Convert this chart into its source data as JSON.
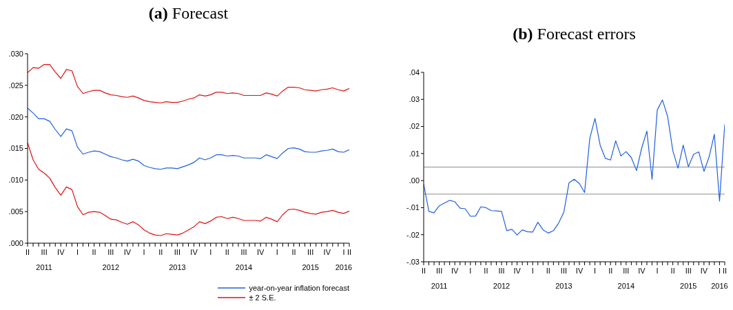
{
  "chart_data": [
    {
      "type": "line",
      "title": "(a) Forecast",
      "x": [
        "2011-04",
        "2011-05",
        "2011-06",
        "2011-07",
        "2011-08",
        "2011-09",
        "2011-10",
        "2011-11",
        "2011-12",
        "2012-01",
        "2012-02",
        "2012-03",
        "2012-04",
        "2012-05",
        "2012-06",
        "2012-07",
        "2012-08",
        "2012-09",
        "2012-10",
        "2012-11",
        "2012-12",
        "2013-01",
        "2013-02",
        "2013-03",
        "2013-04",
        "2013-05",
        "2013-06",
        "2013-07",
        "2013-08",
        "2013-09",
        "2013-10",
        "2013-11",
        "2013-12",
        "2014-01",
        "2014-02",
        "2014-03",
        "2014-04",
        "2014-05",
        "2014-06",
        "2014-07",
        "2014-08",
        "2014-09",
        "2014-10",
        "2014-11",
        "2014-12",
        "2015-01",
        "2015-02",
        "2015-03",
        "2015-04",
        "2015-05",
        "2015-06",
        "2015-07",
        "2015-08",
        "2015-09",
        "2015-10",
        "2015-11",
        "2015-12",
        "2016-01",
        "2016-02"
      ],
      "series": [
        {
          "name": "year-on-year inflation forecast",
          "color": "#1f5fe0",
          "values": [
            0.0214,
            0.0206,
            0.0197,
            0.0197,
            0.0193,
            0.018,
            0.0169,
            0.0181,
            0.0178,
            0.0152,
            0.0141,
            0.0144,
            0.0146,
            0.0145,
            0.0141,
            0.0137,
            0.0135,
            0.0132,
            0.013,
            0.0133,
            0.013,
            0.0123,
            0.012,
            0.0118,
            0.0117,
            0.0119,
            0.0119,
            0.0118,
            0.0121,
            0.0124,
            0.0128,
            0.0135,
            0.0132,
            0.0135,
            0.014,
            0.014,
            0.0138,
            0.0139,
            0.0138,
            0.0135,
            0.0135,
            0.0135,
            0.0134,
            0.014,
            0.0137,
            0.0134,
            0.0143,
            0.015,
            0.0151,
            0.0149,
            0.0145,
            0.0144,
            0.0144,
            0.0146,
            0.0147,
            0.0149,
            0.0145,
            0.0144,
            0.0148
          ]
        },
        {
          "name": "± 2 S.E.",
          "color": "#e01010",
          "values": [
            0.027,
            0.0278,
            0.0277,
            0.0283,
            0.0283,
            0.0271,
            0.0261,
            0.0275,
            0.0273,
            0.0248,
            0.0237,
            0.024,
            0.0242,
            0.0242,
            0.0238,
            0.0235,
            0.0234,
            0.0232,
            0.0231,
            0.0233,
            0.023,
            0.0226,
            0.0224,
            0.0223,
            0.0222,
            0.0224,
            0.0223,
            0.0223,
            0.0225,
            0.0228,
            0.023,
            0.0235,
            0.0233,
            0.0235,
            0.0239,
            0.0239,
            0.0237,
            0.0238,
            0.0237,
            0.0234,
            0.0234,
            0.0234,
            0.0234,
            0.0238,
            0.0236,
            0.0233,
            0.0241,
            0.0247,
            0.0247,
            0.0246,
            0.0243,
            0.0242,
            0.0241,
            0.0243,
            0.0244,
            0.0246,
            0.0243,
            0.0241,
            0.0245
          ]
        },
        {
          "color": "#e01010",
          "values": [
            0.0159,
            0.0132,
            0.0117,
            0.0111,
            0.0103,
            0.0088,
            0.0076,
            0.0089,
            0.0085,
            0.0058,
            0.0045,
            0.0049,
            0.005,
            0.0049,
            0.0044,
            0.0038,
            0.0037,
            0.0033,
            0.003,
            0.0034,
            0.0029,
            0.0021,
            0.0016,
            0.0013,
            0.0012,
            0.0015,
            0.0014,
            0.0013,
            0.0016,
            0.0021,
            0.0026,
            0.0034,
            0.0031,
            0.0035,
            0.0041,
            0.0042,
            0.0039,
            0.0041,
            0.0039,
            0.0036,
            0.0036,
            0.0036,
            0.0035,
            0.0041,
            0.0038,
            0.0034,
            0.0045,
            0.0053,
            0.0054,
            0.0052,
            0.0049,
            0.0047,
            0.0046,
            0.0049,
            0.005,
            0.0052,
            0.0049,
            0.0047,
            0.0051
          ]
        }
      ],
      "xlim": [
        "2011-04",
        "2016-02"
      ],
      "xticks": [
        {
          "value": "2011-04",
          "label": "II"
        },
        {
          "value": "2011-05",
          "label": null
        },
        {
          "value": "2011-06",
          "label": null
        },
        {
          "value": "2011-07",
          "label": "III\n2011"
        },
        {
          "value": "2011-08",
          "label": null
        },
        {
          "value": "2011-09",
          "label": null
        },
        {
          "value": "2011-10",
          "label": "IV"
        },
        {
          "value": "2011-11",
          "label": null
        },
        {
          "value": "2011-12",
          "label": null
        },
        {
          "value": "2012-01",
          "label": "I"
        },
        {
          "value": "2012-02",
          "label": null
        },
        {
          "value": "2012-03",
          "label": null
        },
        {
          "value": "2012-04",
          "label": "II"
        },
        {
          "value": "2012-05",
          "label": null
        },
        {
          "value": "2012-06",
          "label": null
        },
        {
          "value": "2012-07",
          "label": "III\n2012"
        },
        {
          "value": "2012-08",
          "label": null
        },
        {
          "value": "2012-09",
          "label": null
        },
        {
          "value": "2012-10",
          "label": "IV"
        },
        {
          "value": "2012-11",
          "label": null
        },
        {
          "value": "2012-12",
          "label": null
        },
        {
          "value": "2013-01",
          "label": "I"
        },
        {
          "value": "2013-02",
          "label": null
        },
        {
          "value": "2013-03",
          "label": null
        },
        {
          "value": "2013-04",
          "label": "II"
        },
        {
          "value": "2013-05",
          "label": null
        },
        {
          "value": "2013-06",
          "label": null
        },
        {
          "value": "2013-07",
          "label": "III\n2013"
        },
        {
          "value": "2013-08",
          "label": null
        },
        {
          "value": "2013-09",
          "label": null
        },
        {
          "value": "2013-10",
          "label": "IV"
        },
        {
          "value": "2013-11",
          "label": null
        },
        {
          "value": "2013-12",
          "label": null
        },
        {
          "value": "2014-01",
          "label": "I"
        },
        {
          "value": "2014-02",
          "label": null
        },
        {
          "value": "2014-03",
          "label": null
        },
        {
          "value": "2014-04",
          "label": "II"
        },
        {
          "value": "2014-05",
          "label": null
        },
        {
          "value": "2014-06",
          "label": null
        },
        {
          "value": "2014-07",
          "label": "III\n2014"
        },
        {
          "value": "2014-08",
          "label": null
        },
        {
          "value": "2014-09",
          "label": null
        },
        {
          "value": "2014-10",
          "label": "IV"
        },
        {
          "value": "2014-11",
          "label": null
        },
        {
          "value": "2014-12",
          "label": null
        },
        {
          "value": "2015-01",
          "label": "I"
        },
        {
          "value": "2015-02",
          "label": null
        },
        {
          "value": "2015-03",
          "label": null
        },
        {
          "value": "2015-04",
          "label": "II"
        },
        {
          "value": "2015-05",
          "label": null
        },
        {
          "value": "2015-06",
          "label": null
        },
        {
          "value": "2015-07",
          "label": "III\n2015"
        },
        {
          "value": "2015-08",
          "label": null
        },
        {
          "value": "2015-09",
          "label": null
        },
        {
          "value": "2015-10",
          "label": "IV"
        },
        {
          "value": "2015-11",
          "label": null
        },
        {
          "value": "2015-12",
          "label": null
        },
        {
          "value": "2016-01",
          "label": "I\n2016"
        },
        {
          "value": "2016-02",
          "label": "II"
        }
      ],
      "ylim": [
        0,
        0.03
      ],
      "yticks": [
        {
          "value": 0,
          "label": ".000"
        },
        {
          "value": 0.005,
          "label": ".005"
        },
        {
          "value": 0.01,
          "label": ".010"
        },
        {
          "value": 0.015,
          "label": ".015"
        },
        {
          "value": 0.02,
          "label": ".020"
        },
        {
          "value": 0.025,
          "label": ".025"
        },
        {
          "value": 0.03,
          "label": ".030"
        }
      ],
      "legend": "bottom right"
    },
    {
      "type": "line",
      "title": "(b) Forecast errors",
      "x": [
        "2011-04",
        "2011-05",
        "2011-06",
        "2011-07",
        "2011-08",
        "2011-09",
        "2011-10",
        "2011-11",
        "2011-12",
        "2012-01",
        "2012-02",
        "2012-03",
        "2012-04",
        "2012-05",
        "2012-06",
        "2012-07",
        "2012-08",
        "2012-09",
        "2012-10",
        "2012-11",
        "2012-12",
        "2013-01",
        "2013-02",
        "2013-03",
        "2013-04",
        "2013-05",
        "2013-06",
        "2013-07",
        "2013-08",
        "2013-09",
        "2013-10",
        "2013-11",
        "2013-12",
        "2014-01",
        "2014-02",
        "2014-03",
        "2014-04",
        "2014-05",
        "2014-06",
        "2014-07",
        "2014-08",
        "2014-09",
        "2014-10",
        "2014-11",
        "2014-12",
        "2015-01",
        "2015-02",
        "2015-03",
        "2015-04",
        "2015-05",
        "2015-06",
        "2015-07",
        "2015-08",
        "2015-09",
        "2015-10",
        "2015-11",
        "2015-12",
        "2016-01",
        "2016-02"
      ],
      "series": [
        {
          "color": "#1f5fe0",
          "values": [
            -0.0013,
            -0.0114,
            -0.0119,
            -0.0093,
            -0.0083,
            -0.0073,
            -0.0078,
            -0.0102,
            -0.0104,
            -0.0132,
            -0.0131,
            -0.0097,
            -0.01,
            -0.0111,
            -0.0112,
            -0.0114,
            -0.0185,
            -0.018,
            -0.0201,
            -0.0182,
            -0.0189,
            -0.019,
            -0.0154,
            -0.0182,
            -0.0194,
            -0.0185,
            -0.0157,
            -0.0117,
            -0.0008,
            0.0005,
            -0.0011,
            -0.0044,
            0.0156,
            0.023,
            0.0131,
            0.0082,
            0.0076,
            0.0147,
            0.0091,
            0.0107,
            0.0085,
            0.0037,
            0.012,
            0.0183,
            0.0005,
            0.0261,
            0.0298,
            0.0237,
            0.011,
            0.0046,
            0.0131,
            0.0051,
            0.0097,
            0.0106,
            0.0034,
            0.0088,
            0.0171,
            -0.0076,
            0.0208
          ]
        }
      ],
      "xlim": [
        "2011-04",
        "2016-02"
      ],
      "xticks": [
        {
          "value": "2011-04",
          "label": "II"
        },
        {
          "value": "2011-05",
          "label": null
        },
        {
          "value": "2011-06",
          "label": null
        },
        {
          "value": "2011-07",
          "label": "III\n2011"
        },
        {
          "value": "2011-08",
          "label": null
        },
        {
          "value": "2011-09",
          "label": null
        },
        {
          "value": "2011-10",
          "label": "IV"
        },
        {
          "value": "2011-11",
          "label": null
        },
        {
          "value": "2011-12",
          "label": null
        },
        {
          "value": "2012-01",
          "label": "I"
        },
        {
          "value": "2012-02",
          "label": null
        },
        {
          "value": "2012-03",
          "label": null
        },
        {
          "value": "2012-04",
          "label": "II"
        },
        {
          "value": "2012-05",
          "label": null
        },
        {
          "value": "2012-06",
          "label": null
        },
        {
          "value": "2012-07",
          "label": "III\n2012"
        },
        {
          "value": "2012-08",
          "label": null
        },
        {
          "value": "2012-09",
          "label": null
        },
        {
          "value": "2012-10",
          "label": "IV"
        },
        {
          "value": "2012-11",
          "label": null
        },
        {
          "value": "2012-12",
          "label": null
        },
        {
          "value": "2013-01",
          "label": "I"
        },
        {
          "value": "2013-02",
          "label": null
        },
        {
          "value": "2013-03",
          "label": null
        },
        {
          "value": "2013-04",
          "label": "II"
        },
        {
          "value": "2013-05",
          "label": null
        },
        {
          "value": "2013-06",
          "label": null
        },
        {
          "value": "2013-07",
          "label": "III\n2013"
        },
        {
          "value": "2013-08",
          "label": null
        },
        {
          "value": "2013-09",
          "label": null
        },
        {
          "value": "2013-10",
          "label": "IV"
        },
        {
          "value": "2013-11",
          "label": null
        },
        {
          "value": "2013-12",
          "label": null
        },
        {
          "value": "2014-01",
          "label": "I"
        },
        {
          "value": "2014-02",
          "label": null
        },
        {
          "value": "2014-03",
          "label": null
        },
        {
          "value": "2014-04",
          "label": "II"
        },
        {
          "value": "2014-05",
          "label": null
        },
        {
          "value": "2014-06",
          "label": null
        },
        {
          "value": "2014-07",
          "label": "III\n2014"
        },
        {
          "value": "2014-08",
          "label": null
        },
        {
          "value": "2014-09",
          "label": null
        },
        {
          "value": "2014-10",
          "label": "IV"
        },
        {
          "value": "2014-11",
          "label": null
        },
        {
          "value": "2014-12",
          "label": null
        },
        {
          "value": "2015-01",
          "label": "I"
        },
        {
          "value": "2015-02",
          "label": null
        },
        {
          "value": "2015-03",
          "label": null
        },
        {
          "value": "2015-04",
          "label": "II"
        },
        {
          "value": "2015-05",
          "label": null
        },
        {
          "value": "2015-06",
          "label": null
        },
        {
          "value": "2015-07",
          "label": "III\n2015"
        },
        {
          "value": "2015-08",
          "label": null
        },
        {
          "value": "2015-09",
          "label": null
        },
        {
          "value": "2015-10",
          "label": "IV"
        },
        {
          "value": "2015-11",
          "label": null
        },
        {
          "value": "2015-12",
          "label": null
        },
        {
          "value": "2016-01",
          "label": "I\n2016"
        },
        {
          "value": "2016-02",
          "label": "II"
        }
      ],
      "ylim": [
        -0.03,
        0.04
      ],
      "yticks": [
        {
          "value": -0.03,
          "label": "-.03"
        },
        {
          "value": -0.02,
          "label": "-.02"
        },
        {
          "value": -0.01,
          "label": "-.01"
        },
        {
          "value": 0,
          "label": ".00"
        },
        {
          "value": 0.01,
          "label": ".01"
        },
        {
          "value": 0.02,
          "label": ".02"
        },
        {
          "value": 0.03,
          "label": ".03"
        },
        {
          "value": 0.04,
          "label": ".04"
        }
      ],
      "ref_lines": [
        {
          "axis": "y",
          "value": 0.005,
          "color": "#8c8c8c"
        },
        {
          "axis": "y",
          "value": -0.005,
          "color": "#8c8c8c"
        }
      ]
    }
  ]
}
